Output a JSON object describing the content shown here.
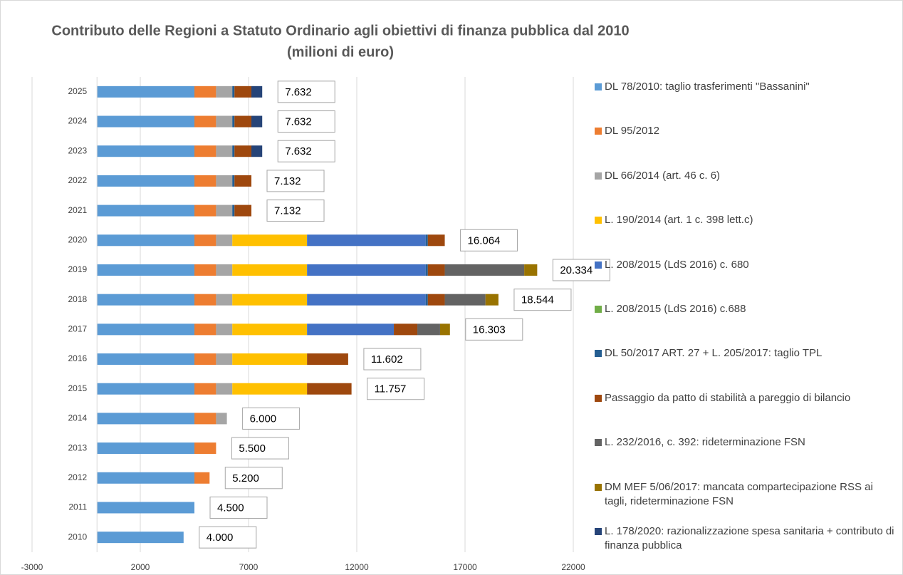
{
  "chart_data": {
    "type": "stacked-barh",
    "title": "Contributo delle Regioni a Statuto Ordinario agli obiettivi di finanza pubblica dal 2010",
    "subtitle": "(milioni di euro)",
    "categories": [
      "2010",
      "2011",
      "2012",
      "2013",
      "2014",
      "2015",
      "2016",
      "2017",
      "2018",
      "2019",
      "2020",
      "2021",
      "2022",
      "2023",
      "2024",
      "2025"
    ],
    "series": [
      {
        "name": "DL 78/2010: taglio trasferimenti \"Bassanini\"",
        "color": "#5b9bd5",
        "values": [
          4000,
          4500,
          4500,
          4500,
          4500,
          4500,
          4500,
          4500,
          4500,
          4500,
          4500,
          4500,
          4500,
          4500,
          4500,
          4500
        ]
      },
      {
        "name": "DL 95/2012",
        "color": "#ed7d31",
        "values": [
          null,
          null,
          700,
          1000,
          1000,
          1000,
          1000,
          1000,
          1000,
          1000,
          1000,
          1000,
          1000,
          1000,
          1000,
          1000
        ]
      },
      {
        "name": "DL 66/2014 (art. 46 c. 6)",
        "color": "#a5a5a5",
        "values": [
          null,
          null,
          null,
          null,
          500,
          750,
          750,
          750,
          750,
          750,
          750,
          750,
          750,
          750,
          750,
          750
        ]
      },
      {
        "name": "L. 190/2014 (art. 1 c. 398 lett.c)",
        "color": "#ffc000",
        "values": [
          null,
          null,
          null,
          null,
          null,
          3452,
          3452,
          3452,
          3452,
          3452,
          3452,
          null,
          null,
          null,
          null,
          null
        ]
      },
      {
        "name": "L. 208/2015 (LdS 2016) c. 680",
        "color": "#4472c4",
        "values": [
          null,
          null,
          null,
          null,
          null,
          null,
          null,
          4010,
          5480,
          5480,
          5480,
          null,
          null,
          null,
          null,
          null
        ]
      },
      {
        "name": "L. 208/2015 (LdS 2016) c.688",
        "color": "#70ad47",
        "values": [
          null,
          null,
          null,
          null,
          null,
          null,
          null,
          null,
          null,
          null,
          null,
          null,
          null,
          null,
          null,
          null
        ]
      },
      {
        "name": "DL 50/2017 ART. 27 + L. 205/2017: taglio TPL",
        "color": "#255e91",
        "values": [
          null,
          null,
          null,
          null,
          null,
          null,
          null,
          null,
          100,
          100,
          100,
          100,
          100,
          100,
          100,
          100
        ]
      },
      {
        "name": "Passaggio da patto di stabilità a pareggio di bilancio",
        "color": "#9e480e",
        "values": [
          null,
          null,
          null,
          null,
          null,
          2055,
          1900,
          1085,
          782,
          782,
          782,
          782,
          782,
          782,
          782,
          782
        ]
      },
      {
        "name": "L. 232/2016, c. 392: rideterminazione FSN",
        "color": "#636363",
        "values": [
          null,
          null,
          null,
          null,
          null,
          null,
          null,
          1050,
          1880,
          3670,
          null,
          null,
          null,
          null,
          null,
          null
        ]
      },
      {
        "name": "DM MEF 5/06/2017: mancata compartecipazione RSS ai tagli, rideterminazione FSN",
        "color": "#997300",
        "values": [
          null,
          null,
          null,
          null,
          null,
          null,
          null,
          456,
          600,
          600,
          null,
          null,
          null,
          null,
          null,
          null
        ]
      },
      {
        "name": "L. 178/2020: razionalizzazione spesa sanitaria + contributo di finanza pubblica",
        "color": "#264478",
        "values": [
          null,
          null,
          null,
          null,
          null,
          null,
          null,
          null,
          null,
          null,
          null,
          null,
          null,
          500,
          500,
          500
        ]
      }
    ],
    "totals": [
      4000,
      4500,
      5200,
      5500,
      6000,
      11757,
      11602,
      16303,
      18544,
      20334,
      16064,
      7132,
      7132,
      7632,
      7632,
      7632
    ],
    "total_labels": [
      "4.000",
      "4.500",
      "5.200",
      "5.500",
      "6.000",
      "11.757",
      "11.602",
      "16.303",
      "18.544",
      "20.334",
      "16.064",
      "7.132",
      "7.132",
      "7.632",
      "7.632",
      "7.632"
    ],
    "xlim": [
      -3000,
      22000
    ],
    "xticks": [
      -3000,
      2000,
      7000,
      12000,
      17000,
      22000
    ],
    "grid": true,
    "legend": "right"
  }
}
